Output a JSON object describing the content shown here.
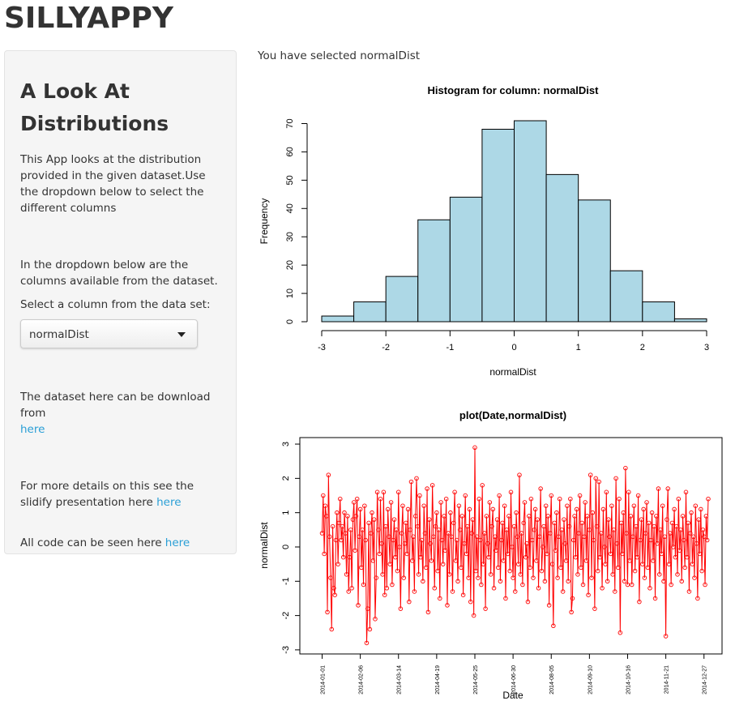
{
  "header": {
    "title": "SILLYAPPY"
  },
  "sidebar": {
    "heading": "A Look At Distributions",
    "intro": "This App looks at the distribution provided in the given dataset.Use the dropdown below to select the different columns",
    "dropdown_note": "In the dropdown below are the columns available from the dataset.",
    "select_label": "Select a column from the data set:",
    "selected": "normalDist",
    "download_text": "The dataset here can be download from",
    "download_link": "here",
    "slidify_text": "For more details on this see the slidify presentation here",
    "slidify_link": "here",
    "code_text": "All code can be seen here",
    "code_link": "here"
  },
  "main": {
    "selection_text": "You have selected normalDist"
  },
  "chart_data": [
    {
      "type": "histogram",
      "title": "Histogram for column: normalDist",
      "x_label": "normalDist",
      "y_label": "Frequency",
      "bins": [
        -3,
        -2.5,
        -2,
        -1.5,
        -1,
        -0.5,
        0,
        0.5,
        1,
        1.5,
        2,
        2.5,
        3
      ],
      "values": [
        2,
        7,
        16,
        36,
        44,
        68,
        71,
        52,
        43,
        18,
        7,
        1
      ],
      "color": "#add8e6",
      "xlim": [
        -3,
        3
      ],
      "ylim": [
        0,
        71
      ],
      "xticks": [
        -3,
        -2,
        -1,
        0,
        1,
        2,
        3
      ],
      "yticks": [
        0,
        10,
        20,
        30,
        40,
        50,
        60,
        70
      ]
    },
    {
      "type": "line",
      "title": "plot(Date,normalDist)",
      "x_label": "Date",
      "y_label": "normalDist",
      "color": "#ff0000",
      "markers": true,
      "xlim": [
        "2013-12-11",
        "2015-01-13"
      ],
      "ylim": [
        -3.12,
        3.19
      ],
      "yticks": [
        -3,
        -2,
        -1,
        0,
        1,
        2,
        3
      ],
      "xticks": [
        "2014-01-01",
        "2014-02-06",
        "2014-03-14",
        "2014-04-19",
        "2014-05-25",
        "2014-06-30",
        "2014-08-05",
        "2014-09-10",
        "2014-10-16",
        "2014-11-21",
        "2014-12-27"
      ],
      "x": [
        "2014-01-01",
        "2014-01-02",
        "2014-01-03",
        "2014-01-04",
        "2014-01-05",
        "2014-01-06",
        "2014-01-07",
        "2014-01-08",
        "2014-01-09",
        "2014-01-10",
        "2014-01-11",
        "2014-01-12",
        "2014-01-13",
        "2014-01-14",
        "2014-01-15",
        "2014-01-16",
        "2014-01-17",
        "2014-01-18",
        "2014-01-19",
        "2014-01-20",
        "2014-01-21",
        "2014-01-22",
        "2014-01-23",
        "2014-01-24",
        "2014-01-25",
        "2014-01-26",
        "2014-01-27",
        "2014-01-28",
        "2014-01-29",
        "2014-01-30",
        "2014-01-31",
        "2014-02-01",
        "2014-02-02",
        "2014-02-03",
        "2014-02-04",
        "2014-02-05",
        "2014-02-06",
        "2014-02-07",
        "2014-02-08",
        "2014-02-09",
        "2014-02-10",
        "2014-02-11",
        "2014-02-12",
        "2014-02-13",
        "2014-02-14",
        "2014-02-15",
        "2014-02-16",
        "2014-02-17",
        "2014-02-18",
        "2014-02-19",
        "2014-02-20",
        "2014-02-21",
        "2014-02-22",
        "2014-02-23",
        "2014-02-24",
        "2014-02-25",
        "2014-02-26",
        "2014-02-27",
        "2014-02-28",
        "2014-03-01",
        "2014-03-02",
        "2014-03-03",
        "2014-03-04",
        "2014-03-05",
        "2014-03-06",
        "2014-03-07",
        "2014-03-08",
        "2014-03-09",
        "2014-03-10",
        "2014-03-11",
        "2014-03-12",
        "2014-03-13",
        "2014-03-14",
        "2014-03-15",
        "2014-03-16",
        "2014-03-17",
        "2014-03-18",
        "2014-03-19",
        "2014-03-20",
        "2014-03-21",
        "2014-03-22",
        "2014-03-23",
        "2014-03-24",
        "2014-03-25",
        "2014-03-26",
        "2014-03-27",
        "2014-03-28",
        "2014-03-29",
        "2014-03-30",
        "2014-03-31",
        "2014-04-01",
        "2014-04-02",
        "2014-04-03",
        "2014-04-04",
        "2014-04-05",
        "2014-04-06",
        "2014-04-07",
        "2014-04-08",
        "2014-04-09",
        "2014-04-10",
        "2014-04-11",
        "2014-04-12",
        "2014-04-13",
        "2014-04-14",
        "2014-04-15",
        "2014-04-16",
        "2014-04-17",
        "2014-04-18",
        "2014-04-19",
        "2014-04-20",
        "2014-04-21",
        "2014-04-22",
        "2014-04-23",
        "2014-04-24",
        "2014-04-25",
        "2014-04-26",
        "2014-04-27",
        "2014-04-28",
        "2014-04-29",
        "2014-04-30",
        "2014-05-01",
        "2014-05-02",
        "2014-05-03",
        "2014-05-04",
        "2014-05-05",
        "2014-05-06",
        "2014-05-07",
        "2014-05-08",
        "2014-05-09",
        "2014-05-10",
        "2014-05-11",
        "2014-05-12",
        "2014-05-13",
        "2014-05-14",
        "2014-05-15",
        "2014-05-16",
        "2014-05-17",
        "2014-05-18",
        "2014-05-19",
        "2014-05-20",
        "2014-05-21",
        "2014-05-22",
        "2014-05-23",
        "2014-05-24",
        "2014-05-25",
        "2014-05-26",
        "2014-05-27",
        "2014-05-28",
        "2014-05-29",
        "2014-05-30",
        "2014-05-31",
        "2014-06-01",
        "2014-06-02",
        "2014-06-03",
        "2014-06-04",
        "2014-06-05",
        "2014-06-06",
        "2014-06-07",
        "2014-06-08",
        "2014-06-09",
        "2014-06-10",
        "2014-06-11",
        "2014-06-12",
        "2014-06-13",
        "2014-06-14",
        "2014-06-15",
        "2014-06-16",
        "2014-06-17",
        "2014-06-18",
        "2014-06-19",
        "2014-06-20",
        "2014-06-21",
        "2014-06-22",
        "2014-06-23",
        "2014-06-24",
        "2014-06-25",
        "2014-06-26",
        "2014-06-27",
        "2014-06-28",
        "2014-06-29",
        "2014-06-30",
        "2014-07-01",
        "2014-07-02",
        "2014-07-03",
        "2014-07-04",
        "2014-07-05",
        "2014-07-06",
        "2014-07-07",
        "2014-07-08",
        "2014-07-09",
        "2014-07-10",
        "2014-07-11",
        "2014-07-12",
        "2014-07-13",
        "2014-07-14",
        "2014-07-15",
        "2014-07-16",
        "2014-07-17",
        "2014-07-18",
        "2014-07-19",
        "2014-07-20",
        "2014-07-21",
        "2014-07-22",
        "2014-07-23",
        "2014-07-24",
        "2014-07-25",
        "2014-07-26",
        "2014-07-27",
        "2014-07-28",
        "2014-07-29",
        "2014-07-30",
        "2014-07-31",
        "2014-08-01",
        "2014-08-02",
        "2014-08-03",
        "2014-08-04",
        "2014-08-05",
        "2014-08-06",
        "2014-08-07",
        "2014-08-08",
        "2014-08-09",
        "2014-08-10",
        "2014-08-11",
        "2014-08-12",
        "2014-08-13",
        "2014-08-14",
        "2014-08-15",
        "2014-08-16",
        "2014-08-17",
        "2014-08-18",
        "2014-08-19",
        "2014-08-20",
        "2014-08-21",
        "2014-08-22",
        "2014-08-23",
        "2014-08-24",
        "2014-08-25",
        "2014-08-26",
        "2014-08-27",
        "2014-08-28",
        "2014-08-29",
        "2014-08-30",
        "2014-08-31",
        "2014-09-01",
        "2014-09-02",
        "2014-09-03",
        "2014-09-04",
        "2014-09-05",
        "2014-09-06",
        "2014-09-07",
        "2014-09-08",
        "2014-09-09",
        "2014-09-10",
        "2014-09-11",
        "2014-09-12",
        "2014-09-13",
        "2014-09-14",
        "2014-09-15",
        "2014-09-16",
        "2014-09-17",
        "2014-09-18",
        "2014-09-19",
        "2014-09-20",
        "2014-09-21",
        "2014-09-22",
        "2014-09-23",
        "2014-09-24",
        "2014-09-25",
        "2014-09-26",
        "2014-09-27",
        "2014-09-28",
        "2014-09-29",
        "2014-09-30",
        "2014-10-01",
        "2014-10-02",
        "2014-10-03",
        "2014-10-04",
        "2014-10-05",
        "2014-10-06",
        "2014-10-07",
        "2014-10-08",
        "2014-10-09",
        "2014-10-10",
        "2014-10-11",
        "2014-10-12",
        "2014-10-13",
        "2014-10-14",
        "2014-10-15",
        "2014-10-16",
        "2014-10-17",
        "2014-10-18",
        "2014-10-19",
        "2014-10-20",
        "2014-10-21",
        "2014-10-22",
        "2014-10-23",
        "2014-10-24",
        "2014-10-25",
        "2014-10-26",
        "2014-10-27",
        "2014-10-28",
        "2014-10-29",
        "2014-10-30",
        "2014-10-31",
        "2014-11-01",
        "2014-11-02",
        "2014-11-03",
        "2014-11-04",
        "2014-11-05",
        "2014-11-06",
        "2014-11-07",
        "2014-11-08",
        "2014-11-09",
        "2014-11-10",
        "2014-11-11",
        "2014-11-12",
        "2014-11-13",
        "2014-11-14",
        "2014-11-15",
        "2014-11-16",
        "2014-11-17",
        "2014-11-18",
        "2014-11-19",
        "2014-11-20",
        "2014-11-21",
        "2014-11-22",
        "2014-11-23",
        "2014-11-24",
        "2014-11-25",
        "2014-11-26",
        "2014-11-27",
        "2014-11-28",
        "2014-11-29",
        "2014-11-30",
        "2014-12-01",
        "2014-12-02",
        "2014-12-03",
        "2014-12-04",
        "2014-12-05",
        "2014-12-06",
        "2014-12-07",
        "2014-12-08",
        "2014-12-09",
        "2014-12-10",
        "2014-12-11",
        "2014-12-12",
        "2014-12-13",
        "2014-12-14",
        "2014-12-15",
        "2014-12-16",
        "2014-12-17",
        "2014-12-18",
        "2014-12-19",
        "2014-12-20",
        "2014-12-21",
        "2014-12-22",
        "2014-12-23",
        "2014-12-24",
        "2014-12-25",
        "2014-12-26",
        "2014-12-27",
        "2014-12-28",
        "2014-12-29",
        "2014-12-30",
        "2014-12-31"
      ],
      "values": [
        0.4,
        1.5,
        -0.2,
        1.2,
        0.9,
        -1.9,
        2.1,
        0.3,
        -0.9,
        -2.4,
        0.6,
        -1.2,
        -1.4,
        0.2,
        1.0,
        -0.5,
        0.7,
        1.4,
        0.2,
        0.6,
        -0.3,
        1.0,
        0.4,
        -0.8,
        0.9,
        -1.3,
        -0.3,
        0.5,
        -1.2,
        0.8,
        1.3,
        -0.1,
        0.9,
        1.4,
        -1.7,
        0.3,
        1.1,
        -0.6,
        0.5,
        -1.1,
        1.2,
        0.2,
        -2.8,
        -1.8,
        0.7,
        -2.4,
        0.4,
        1.0,
        -0.4,
        0.8,
        -2.1,
        -0.9,
        1.6,
        0.5,
        -0.2,
        1.4,
        0.1,
        -0.8,
        1.6,
        -1.4,
        0.6,
        -1.2,
        1.1,
        0.3,
        -0.5,
        1.3,
        -1.1,
        0.2,
        0.8,
        -0.3,
        0.5,
        -0.7,
        1.6,
        0.0,
        -1.8,
        0.4,
        1.2,
        -0.9,
        0.1,
        0.7,
        -0.2,
        1.1,
        -1.6,
        0.5,
        1.9,
        -0.4,
        0.3,
        -1.3,
        0.9,
        2.0,
        0.6,
        -0.8,
        1.5,
        -0.3,
        0.2,
        -1.0,
        1.2,
        0.4,
        -0.6,
        1.7,
        -1.9,
        0.8,
        0.1,
        -0.4,
        1.8,
        0.3,
        -1.2,
        0.6,
        1.0,
        -0.7,
        0.5,
        -1.5,
        1.3,
        0.2,
        -0.5,
        0.9,
        -0.1,
        1.4,
        -1.7,
        0.4,
        -0.8,
        1.0,
        0.3,
        -1.3,
        0.7,
        1.6,
        -0.4,
        0.2,
        -1.0,
        1.2,
        0.5,
        -0.6,
        0.9,
        -1.4,
        0.1,
        1.5,
        -0.2,
        0.6,
        -0.9,
        1.1,
        -1.6,
        0.4,
        0.8,
        -2.0,
        2.9,
        -0.7,
        0.3,
        -0.9,
        1.4,
        0.2,
        -1.1,
        1.8,
        -0.5,
        0.4,
        -1.8,
        0.9,
        0.1,
        -0.3,
        1.3,
        -0.8,
        0.6,
        1.1,
        -1.2,
        0.3,
        -0.1,
        0.8,
        -0.6,
        1.5,
        -1.0,
        0.2,
        0.7,
        -0.4,
        1.2,
        -1.5,
        0.5,
        -0.2,
        0.9,
        -0.7,
        1.6,
        0.0,
        -0.9,
        0.6,
        -1.3,
        1.0,
        0.3,
        -0.5,
        2.1,
        -0.8,
        0.4,
        -1.1,
        0.7,
        1.3,
        -0.3,
        0.1,
        -1.6,
        0.9,
        -0.6,
        1.4,
        0.2,
        -0.9,
        0.5,
        1.1,
        -0.4,
        0.8,
        -1.2,
        0.3,
        1.7,
        -0.7,
        0.0,
        0.6,
        -1.0,
        1.2,
        -0.2,
        0.9,
        -1.7,
        0.4,
        1.5,
        -0.5,
        -2.3,
        0.7,
        -0.1,
        1.0,
        -0.9,
        0.3,
        1.4,
        -0.6,
        0.5,
        -1.3,
        0.8,
        0.1,
        -0.4,
        1.2,
        -1.0,
        0.6,
        1.4,
        -1.9,
        -1.5,
        0.2,
        0.9,
        -0.3,
        1.1,
        -0.8,
        0.4,
        1.5,
        -0.6,
        0.7,
        -1.1,
        0.3,
        1.3,
        -0.4,
        0.9,
        -1.4,
        0.5,
        2.1,
        -0.9,
        1.0,
        0.2,
        -1.8,
        2.0,
        0.6,
        -0.7,
        1.9,
        -0.3,
        0.4,
        -1.2,
        1.1,
        0.0,
        -0.5,
        1.6,
        -1.0,
        0.8,
        0.3,
        -0.2,
        1.2,
        -0.8,
        0.5,
        -1.3,
        2.0,
        0.1,
        -0.6,
        1.4,
        -2.5,
        0.7,
        -0.2,
        1.0,
        -1.0,
        2.3,
        0.4,
        -1.1,
        1.6,
        -0.4,
        0.9,
        -1.1,
        0.3,
        1.2,
        -0.7,
        0.6,
        -0.3,
        1.5,
        -1.6,
        0.2,
        0.8,
        -0.5,
        1.1,
        -0.9,
        0.4,
        1.3,
        -0.6,
        0.7,
        -1.2,
        0.2,
        1.0,
        -0.4,
        0.6,
        -1.5,
        0.9,
        0.1,
        1.7,
        -0.8,
        0.5,
        -0.2,
        1.2,
        -1.0,
        0.3,
        -2.6,
        0.8,
        1.7,
        -0.5,
        0.4,
        -1.1,
        0.7,
        0.0,
        1.1,
        -0.3,
        0.6,
        -0.8,
        1.4,
        -0.1,
        0.5,
        -1.0,
        0.9,
        0.2,
        -0.6,
        1.6,
        -0.3,
        0.7,
        -1.3,
        0.4,
        1.0,
        -0.5,
        0.3,
        -0.9,
        1.2,
        0.1,
        -1.5,
        0.8,
        -0.2,
        1.1,
        -0.7,
        0.5,
        0.3,
        -1.1,
        0.9,
        0.2,
        1.4
      ]
    }
  ]
}
